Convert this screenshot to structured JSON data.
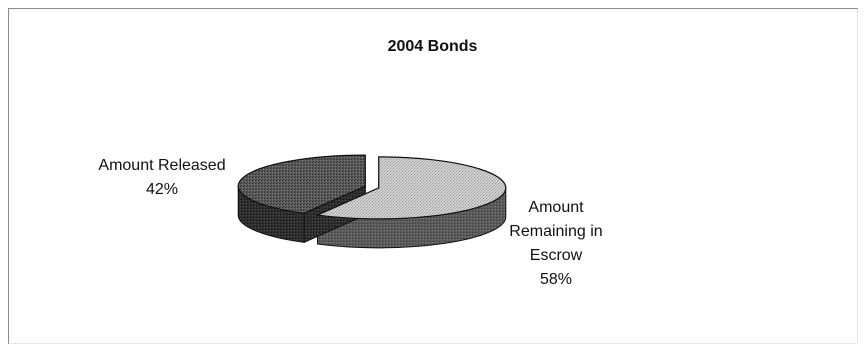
{
  "chart_data": {
    "type": "pie",
    "title": "2004 Bonds",
    "slices": [
      {
        "label": "Amount Remaining in Escrow",
        "value": 58,
        "percent_label": "58%",
        "label_lines": [
          "Amount",
          "Remaining in",
          "Escrow"
        ]
      },
      {
        "label": "Amount Released",
        "value": 42,
        "percent_label": "42%",
        "label_lines": [
          "Amount Released"
        ]
      }
    ],
    "colors": {
      "remaining_top": "#cfcfcf",
      "remaining_side": "#5e5e5e",
      "released_top": "#5a5a5a",
      "released_side": "#2e2e2e"
    },
    "style": "3d-pie-exploded"
  }
}
